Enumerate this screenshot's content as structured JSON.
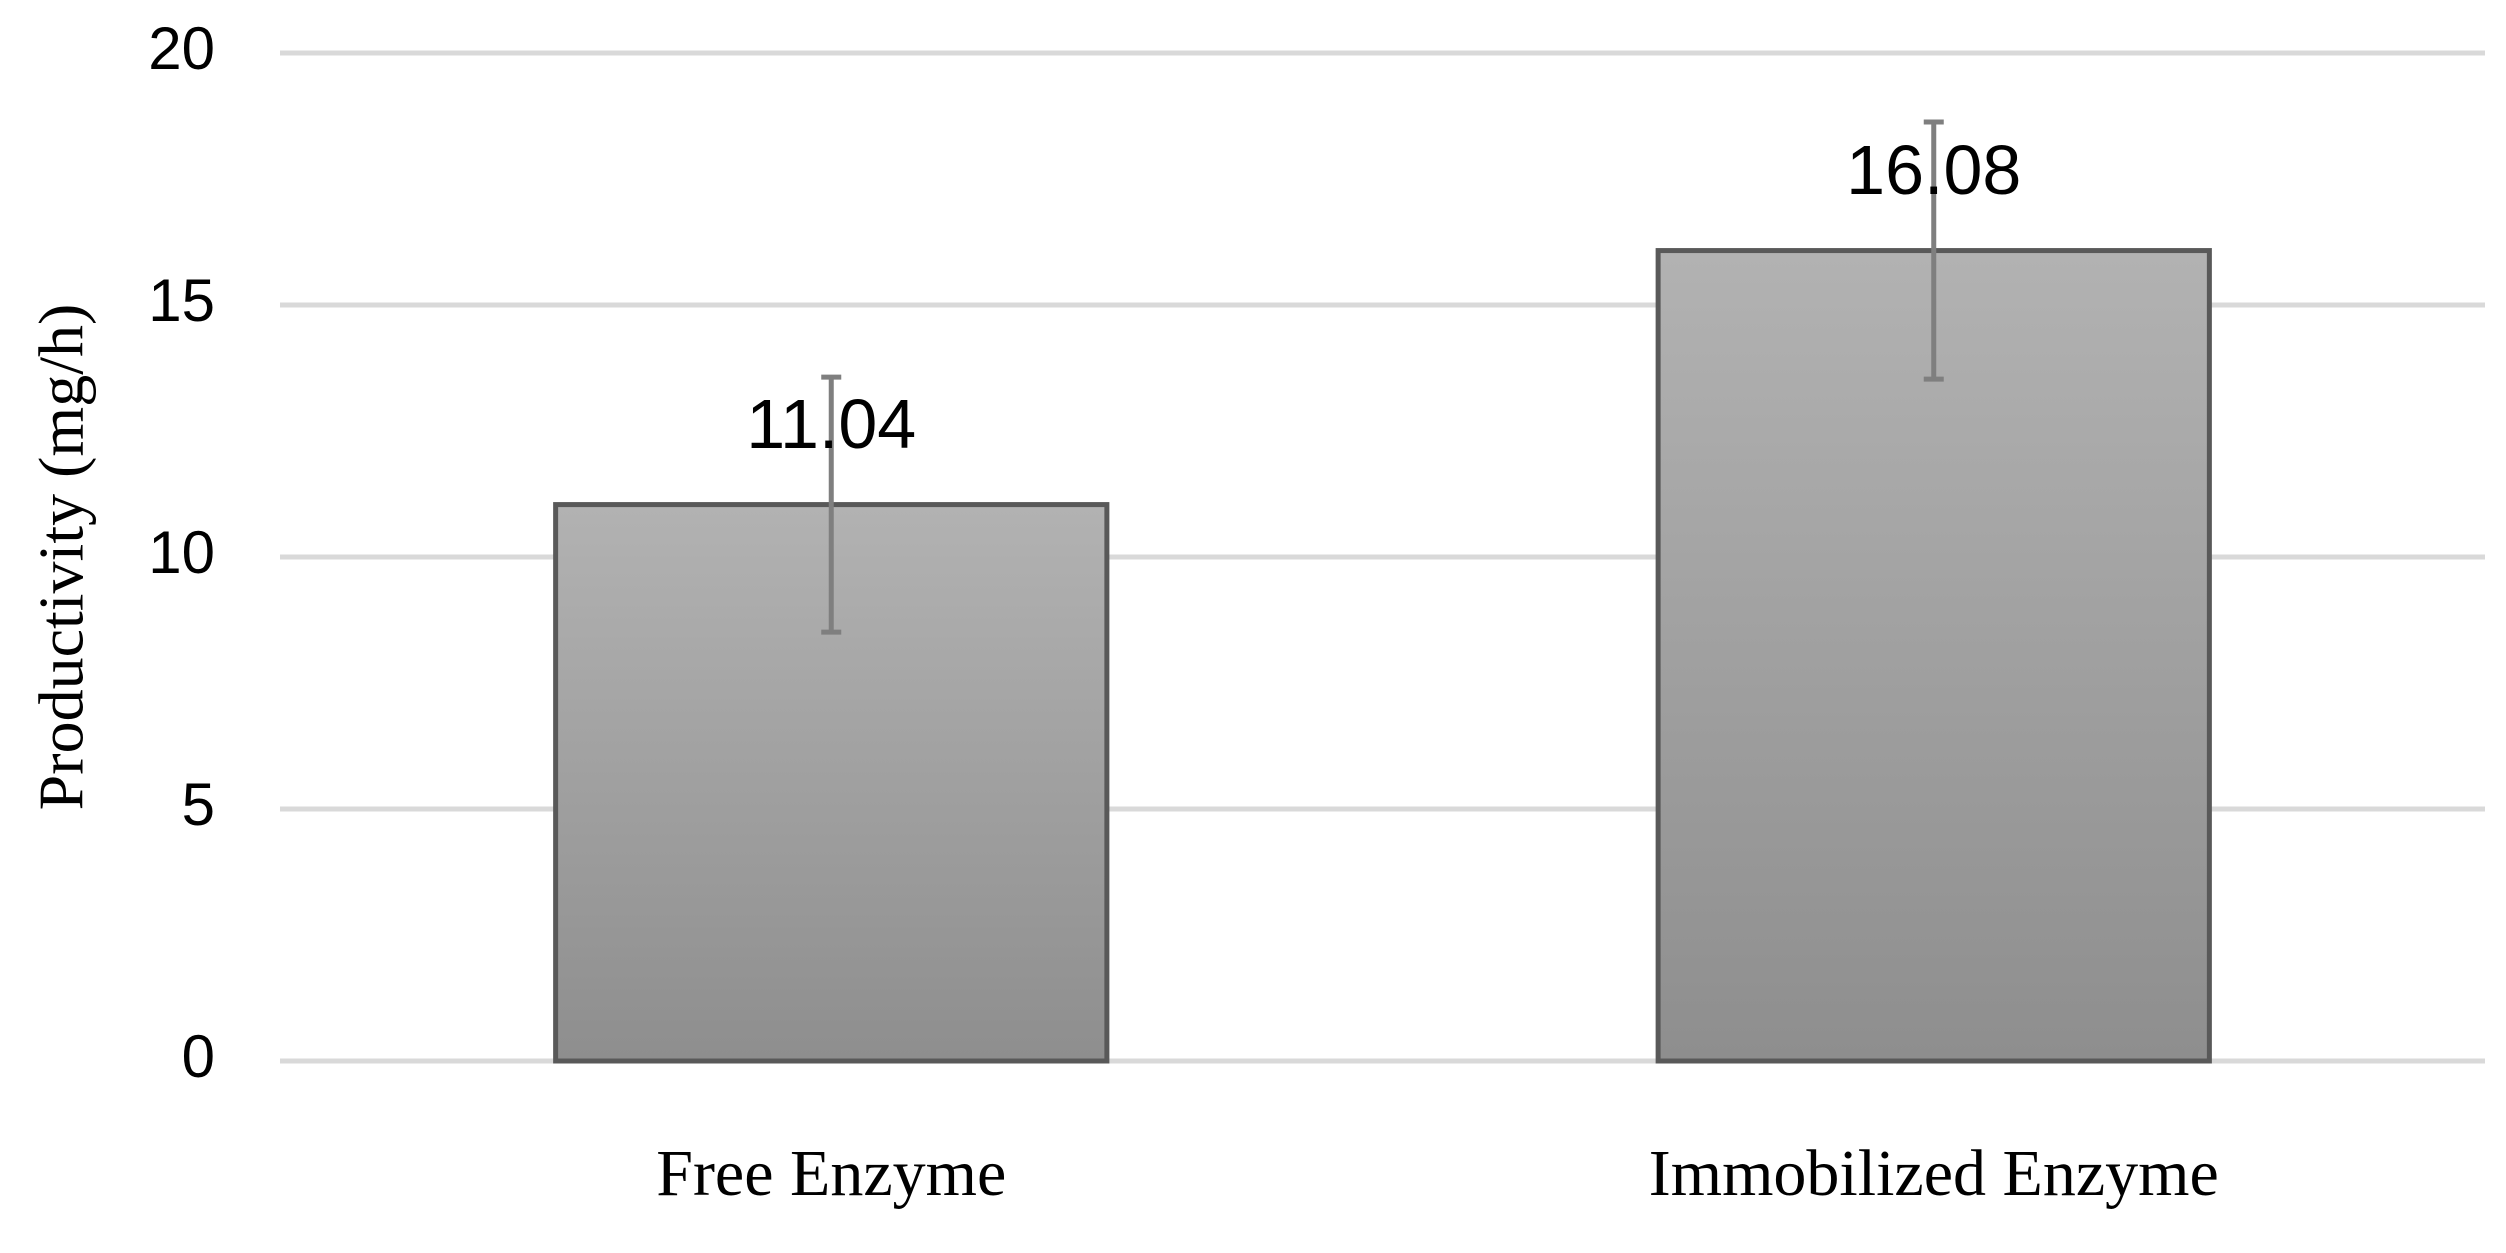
{
  "chart_data": {
    "type": "bar",
    "ylabel": "Productivity (mg/h)",
    "categories": [
      "Free Enzyme",
      "Immobilized Enzyme"
    ],
    "values": [
      11.04,
      16.08
    ],
    "errors": [
      2.53,
      2.55
    ],
    "color": "#a0a0a0",
    "ylim": [
      0,
      20
    ],
    "yticks": [
      0,
      5,
      10,
      15,
      20
    ],
    "grid": true
  }
}
